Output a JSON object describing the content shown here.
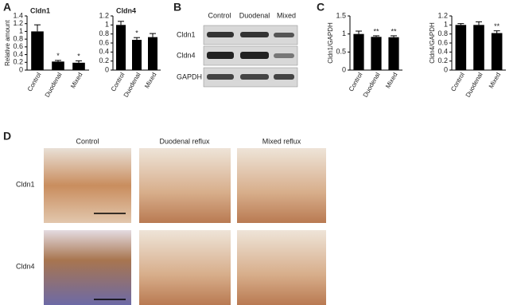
{
  "panels": [
    "A",
    "B",
    "C",
    "D"
  ],
  "chart_data": [
    {
      "type": "bar",
      "title": "Cldn1",
      "y_label": "Relative amount",
      "categories": [
        "Control",
        "Duodenal",
        "Mixed"
      ],
      "values": [
        1.0,
        0.22,
        0.19
      ],
      "errors": [
        0.17,
        0.03,
        0.05
      ],
      "significance": [
        null,
        "*",
        "*"
      ],
      "color": "#000000",
      "ylim": [
        0,
        1.4
      ],
      "yticks": [
        0,
        0.2,
        0.4,
        0.6,
        0.8,
        1,
        1.2,
        1.4
      ]
    },
    {
      "type": "bar",
      "title": "Cldn4",
      "categories": [
        "Control",
        "Duodenal",
        "Mixed"
      ],
      "values": [
        1.0,
        0.67,
        0.73
      ],
      "errors": [
        0.08,
        0.05,
        0.08
      ],
      "significance": [
        null,
        "*",
        null
      ],
      "color": "#000000",
      "ylim": [
        0,
        1.2
      ],
      "yticks": [
        0,
        0.2,
        0.4,
        0.6,
        0.8,
        1,
        1.2
      ]
    },
    {
      "type": "bar",
      "y_label": "Cldn1/GAPDH",
      "categories": [
        "Control",
        "Duodenal",
        "Mixed"
      ],
      "values": [
        1.0,
        0.92,
        0.91
      ],
      "errors": [
        0.08,
        0.03,
        0.04
      ],
      "significance": [
        null,
        "**",
        "**"
      ],
      "color": "#000000",
      "ylim": [
        0,
        1.5
      ],
      "yticks": [
        0,
        0.5,
        1,
        1.5
      ]
    },
    {
      "type": "bar",
      "y_label": "Cldn4/GAPDH",
      "categories": [
        "Control",
        "Duodenal",
        "Mixed"
      ],
      "values": [
        1.0,
        1.0,
        0.82
      ],
      "errors": [
        0.03,
        0.07,
        0.05
      ],
      "significance": [
        null,
        null,
        "**"
      ],
      "color": "#000000",
      "ylim": [
        0,
        1.2
      ],
      "yticks": [
        0,
        0.2,
        0.4,
        0.6,
        0.8,
        1,
        1.2
      ]
    }
  ],
  "blot": {
    "columns": [
      "Control",
      "Duodenal",
      "Mixed"
    ],
    "rows": [
      "Cldn1",
      "Cldn4",
      "GAPDH"
    ]
  },
  "histology": {
    "columns": [
      "Control",
      "Duodenal reflux",
      "Mixed reflux"
    ],
    "rows": [
      "Cldn1",
      "Cldn4"
    ]
  }
}
